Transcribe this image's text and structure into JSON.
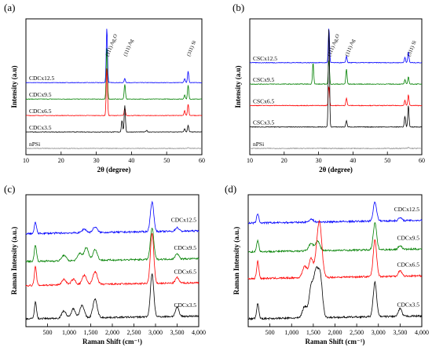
{
  "chart_data": [
    {
      "type": "line",
      "panel_label": "(a)",
      "xlabel": "2θ (degree)",
      "ylabel": "Intensity (a.u)",
      "xlim": [
        10,
        60
      ],
      "xticks": [
        10,
        20,
        30,
        40,
        50,
        60
      ],
      "annotations": [
        {
          "text": "(111) Ag₂O",
          "x": 33
        },
        {
          "text": "(111) Ag",
          "x": 38.1
        },
        {
          "text": "(311) Si",
          "x": 56.1
        }
      ],
      "series": [
        {
          "name": "CDCx12.5",
          "color": "#0000ff",
          "offset": 4,
          "peaks": [
            [
              33,
              3.3
            ],
            [
              38.1,
              0.25
            ],
            [
              55.1,
              0.25
            ],
            [
              56.1,
              0.7
            ]
          ]
        },
        {
          "name": "CDCx9.5",
          "color": "#008000",
          "offset": 3,
          "peaks": [
            [
              33,
              3.1
            ],
            [
              38.1,
              0.9
            ],
            [
              55.1,
              0.25
            ],
            [
              56.1,
              0.85
            ]
          ]
        },
        {
          "name": "CDCx6.5",
          "color": "#ff0000",
          "offset": 2,
          "peaks": [
            [
              33,
              2.9
            ],
            [
              38.1,
              0.45
            ],
            [
              55.1,
              0.3
            ],
            [
              56.1,
              0.7
            ]
          ]
        },
        {
          "name": "CDCx3.5",
          "color": "#000000",
          "offset": 1,
          "peaks": [
            [
              37.3,
              0.7
            ],
            [
              38.1,
              1.6
            ],
            [
              44.3,
              0.1
            ],
            [
              55.1,
              0.2
            ],
            [
              56.1,
              0.4
            ]
          ]
        },
        {
          "name": "nPSi",
          "color": "#888888",
          "offset": 0,
          "peaks": [
            [
              56.1,
              0.05
            ]
          ]
        }
      ]
    },
    {
      "type": "line",
      "panel_label": "(b)",
      "xlabel": "2θ (degree)",
      "ylabel": "Intensity (a.u)",
      "xlim": [
        10,
        60
      ],
      "xticks": [
        10,
        20,
        30,
        40,
        50,
        60
      ],
      "annotations": [
        {
          "text": "(111) Ag₂O",
          "x": 33
        },
        {
          "text": "(111) Ag",
          "x": 38.1
        },
        {
          "text": "(311) Si",
          "x": 56.1
        }
      ],
      "series": [
        {
          "name": "CSCx12.5",
          "color": "#0000ff",
          "offset": 4,
          "peaks": [
            [
              33,
              1.6
            ],
            [
              38.1,
              0.3
            ],
            [
              55.1,
              0.25
            ],
            [
              56.1,
              0.5
            ]
          ]
        },
        {
          "name": "CSCx9.5",
          "color": "#008000",
          "offset": 3,
          "peaks": [
            [
              28.4,
              1.0
            ],
            [
              33,
              1.1
            ],
            [
              38.1,
              0.7
            ],
            [
              55.1,
              0.2
            ],
            [
              56.1,
              0.35
            ]
          ]
        },
        {
          "name": "CSCx6.5",
          "color": "#ff0000",
          "offset": 2,
          "peaks": [
            [
              33,
              0.9
            ],
            [
              38.1,
              0.35
            ],
            [
              55.1,
              0.25
            ],
            [
              56.1,
              0.5
            ]
          ]
        },
        {
          "name": "CSCx3.5",
          "color": "#000000",
          "offset": 1,
          "peaks": [
            [
              33,
              4.6
            ],
            [
              38.1,
              0.3
            ],
            [
              55.1,
              0.5
            ],
            [
              56.1,
              1.0
            ]
          ]
        },
        {
          "name": "nPSi",
          "color": "#888888",
          "offset": 0,
          "peaks": [
            [
              56.1,
              0.05
            ]
          ]
        }
      ]
    },
    {
      "type": "line",
      "panel_label": "(c)",
      "xlabel": "Raman Shift (cm⁻¹)",
      "ylabel": "Raman Intensity (a.u.)",
      "xlim": [
        0,
        4000
      ],
      "xticks": [
        500,
        1000,
        1500,
        2000,
        2500,
        3000,
        3500,
        4000
      ],
      "xticklabels": [
        "500",
        "1,000",
        "1,500",
        "2,000",
        "2,500",
        "3,000",
        "3,500",
        "4,000"
      ],
      "series": [
        {
          "name": "CDCx12.5",
          "color": "#0000ff",
          "offset": 4.6,
          "peaks": [
            [
              220,
              0.6
            ],
            [
              1350,
              0.2
            ],
            [
              1600,
              0.3
            ],
            [
              2920,
              1.6
            ],
            [
              3500,
              0.2
            ]
          ]
        },
        {
          "name": "CDCx9.5",
          "color": "#008000",
          "offset": 3.1,
          "peaks": [
            [
              220,
              0.9
            ],
            [
              880,
              0.3
            ],
            [
              1250,
              0.4
            ],
            [
              1400,
              0.7
            ],
            [
              1600,
              0.6
            ],
            [
              2920,
              1.7
            ],
            [
              3500,
              0.3
            ]
          ]
        },
        {
          "name": "CDCx6.5",
          "color": "#ff0000",
          "offset": 1.8,
          "peaks": [
            [
              220,
              1.0
            ],
            [
              880,
              0.3
            ],
            [
              1100,
              0.3
            ],
            [
              1350,
              0.5
            ],
            [
              1600,
              0.7
            ],
            [
              2920,
              2.7
            ],
            [
              3500,
              0.3
            ]
          ]
        },
        {
          "name": "CDCx3.5",
          "color": "#000000",
          "offset": 0,
          "peaks": [
            [
              220,
              0.9
            ],
            [
              880,
              0.4
            ],
            [
              1100,
              0.5
            ],
            [
              1300,
              0.7
            ],
            [
              1600,
              1.0
            ],
            [
              2920,
              2.3
            ],
            [
              3500,
              0.5
            ]
          ]
        }
      ]
    },
    {
      "type": "line",
      "panel_label": "(d)",
      "xlabel": "Raman Shift (cm⁻¹)",
      "ylabel": "Raman Intensity (a.u.)",
      "xlim": [
        0,
        4000
      ],
      "xticks": [
        500,
        1000,
        1500,
        2000,
        2500,
        3000,
        3500,
        4000
      ],
      "xticklabels": [
        "500",
        "1,000",
        "1,500",
        "2,000",
        "2,500",
        "3,000",
        "3,500",
        "4,000"
      ],
      "series": [
        {
          "name": "CDCx12.5",
          "color": "#0000ff",
          "offset": 5.0,
          "peaks": [
            [
              220,
              0.5
            ],
            [
              1450,
              0.15
            ],
            [
              2920,
              1.0
            ],
            [
              3500,
              0.15
            ]
          ]
        },
        {
          "name": "CDCx9.5",
          "color": "#008000",
          "offset": 3.5,
          "peaks": [
            [
              220,
              0.6
            ],
            [
              1450,
              0.4
            ],
            [
              1600,
              0.5
            ],
            [
              2920,
              1.4
            ],
            [
              3500,
              0.2
            ]
          ]
        },
        {
          "name": "CDCx6.5",
          "color": "#ff0000",
          "offset": 2.1,
          "peaks": [
            [
              220,
              0.9
            ],
            [
              1300,
              0.6
            ],
            [
              1450,
              1.0
            ],
            [
              1600,
              1.5
            ],
            [
              1660,
              2.0
            ],
            [
              2920,
              1.9
            ],
            [
              3500,
              0.3
            ]
          ]
        },
        {
          "name": "CDCx3.5",
          "color": "#000000",
          "offset": 0,
          "peaks": [
            [
              220,
              0.8
            ],
            [
              1300,
              0.6
            ],
            [
              1450,
              1.6
            ],
            [
              1560,
              2.2
            ],
            [
              1660,
              2.1
            ],
            [
              2920,
              1.8
            ],
            [
              3500,
              0.4
            ]
          ]
        }
      ]
    }
  ]
}
